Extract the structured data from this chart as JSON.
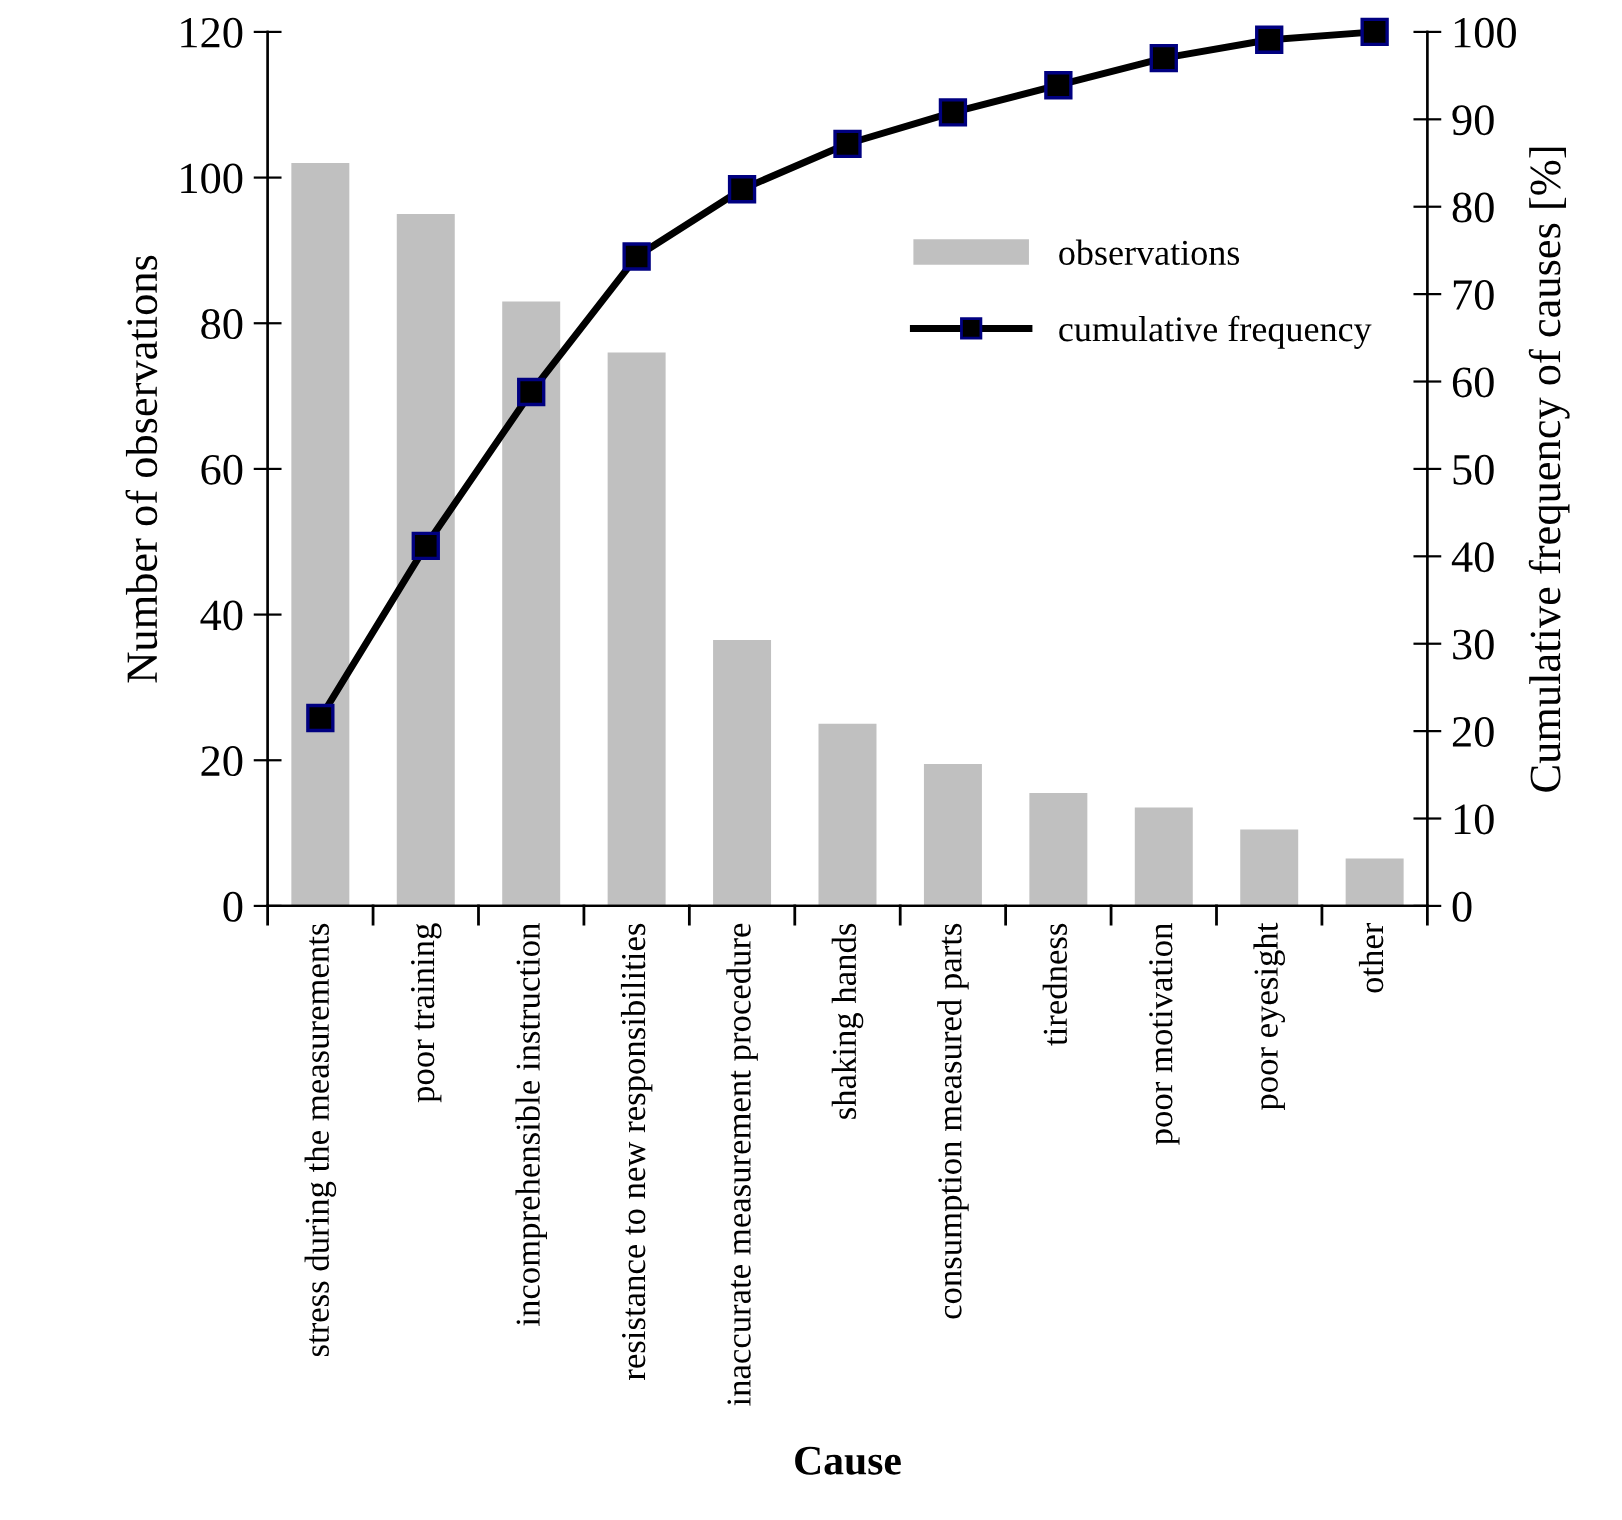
{
  "chart_data": {
    "type": "bar",
    "xlabel": "Cause",
    "ylabel": "Number of observations",
    "y2label": "Cumulative frequency of causes [%]",
    "categories": [
      "stress during the measurements",
      "poor training",
      "incomprehensible instruction",
      "resistance to new responsibilities",
      "inaccurate measurement procedure",
      "shaking hands",
      "consumption measured parts",
      "tiredness",
      "poor motivation",
      "poor eyesight",
      "other"
    ],
    "series": [
      {
        "name": "observations",
        "color": "#c0c0c0",
        "values": [
          102,
          95,
          83,
          76,
          36.5,
          25,
          19.5,
          15.5,
          13.5,
          10.5,
          6.5
        ]
      },
      {
        "name": "cumulative frequency",
        "type": "line",
        "axis": "y2",
        "color": "#000000",
        "marker": "square",
        "line_style": "solid",
        "values": [
          21.5,
          41.2,
          58.8,
          74.3,
          82.0,
          87.2,
          90.8,
          93.9,
          97.0,
          99.1,
          100
        ]
      }
    ],
    "ylim": [
      0,
      120
    ],
    "yticks": [
      0,
      20,
      40,
      60,
      80,
      100,
      120
    ],
    "y2lim": [
      0,
      100
    ],
    "y2ticks": [
      0,
      10,
      20,
      30,
      40,
      50,
      60,
      70,
      80,
      90,
      100
    ],
    "grid": false,
    "legend": "right"
  }
}
